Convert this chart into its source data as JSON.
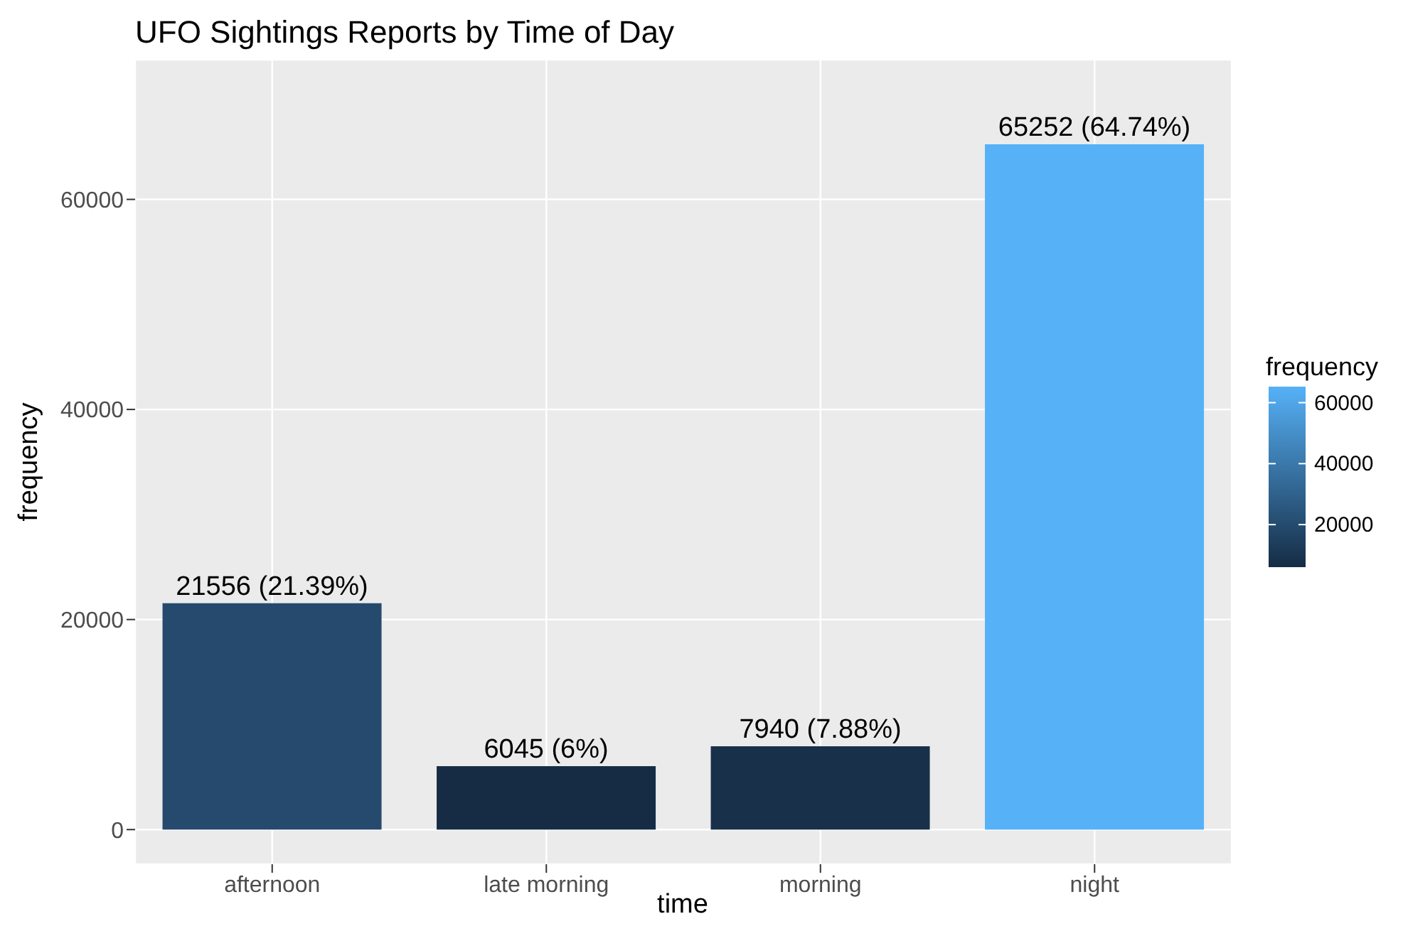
{
  "chart_data": {
    "type": "bar",
    "title": "UFO Sightings Reports by Time of Day",
    "xlabel": "time",
    "ylabel": "frequency",
    "categories": [
      "afternoon",
      "late morning",
      "morning",
      "night"
    ],
    "values": [
      21556,
      6045,
      7940,
      65252
    ],
    "colors": [
      "#254a6e",
      "#152c44",
      "#183049",
      "#56b1f7"
    ],
    "value_labels": [
      "21556 (21.39%)",
      "6045 (6%)",
      "7940 (7.88%)",
      "65252 (64.74%)"
    ],
    "ylim": [
      -3300,
      73300
    ],
    "yticks": [
      0,
      20000,
      40000,
      60000
    ],
    "grid": true,
    "clabel": "frequency",
    "clim": [
      6045,
      65252
    ],
    "cticks": [
      20000,
      40000,
      60000
    ]
  }
}
